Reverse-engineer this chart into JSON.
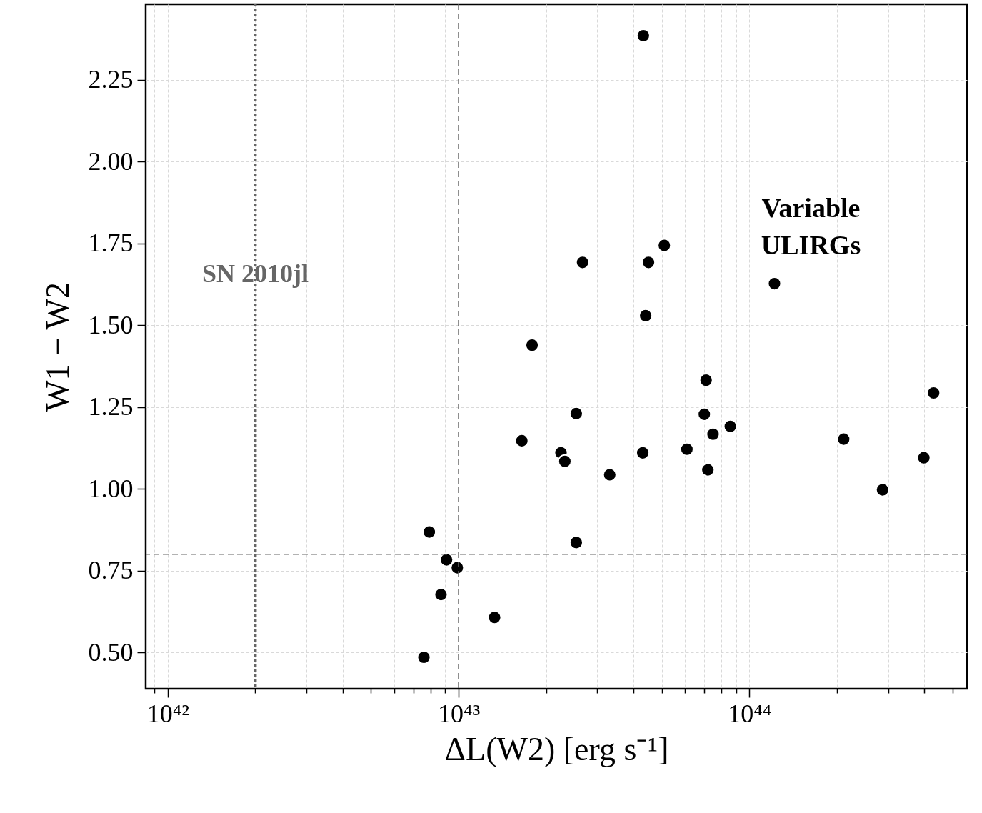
{
  "chart_data": {
    "type": "scatter",
    "xlabel": "ΔL(W2) [erg s⁻¹]",
    "ylabel": "W1 − W2",
    "log": "x",
    "grid": true,
    "marker": "circle",
    "color": "#000000",
    "x": [
      4.32e+43,
      5.1e+43,
      4.5e+43,
      2.67e+43,
      4.4e+43,
      1.22e+44,
      1.79e+43,
      7.1e+43,
      4.3e+44,
      2.54e+43,
      7e+43,
      8.6e+43,
      7.5e+43,
      2.11e+44,
      1.65e+43,
      6.1e+43,
      2.25e+43,
      4.3e+43,
      2.32e+43,
      3.98e+44,
      7.2e+43,
      3.31e+43,
      2.87e+44,
      2.54e+43,
      7.93e+42,
      9.09e+42,
      9.9e+42,
      8.7e+42,
      1.33e+43,
      7.6e+42
    ],
    "values": [
      2.385,
      1.744,
      1.692,
      1.692,
      1.529,
      1.627,
      1.439,
      1.332,
      1.293,
      1.23,
      1.228,
      1.191,
      1.167,
      1.152,
      1.147,
      1.121,
      1.11,
      1.11,
      1.084,
      1.095,
      1.058,
      1.043,
      0.997,
      0.836,
      0.868,
      0.783,
      0.759,
      0.677,
      0.607,
      0.485
    ],
    "xlim": [
      8.4e+41,
      5.6e+44
    ],
    "ylim": [
      0.389,
      2.481
    ],
    "xticks": [
      {
        "value": 9e+41,
        "label": null
      },
      {
        "value": 1e+42,
        "label": "10⁴²"
      },
      {
        "value": 2e+42,
        "label": null
      },
      {
        "value": 3e+42,
        "label": null
      },
      {
        "value": 4e+42,
        "label": null
      },
      {
        "value": 5e+42,
        "label": null
      },
      {
        "value": 6e+42,
        "label": null
      },
      {
        "value": 7e+42,
        "label": null
      },
      {
        "value": 8e+42,
        "label": null
      },
      {
        "value": 9e+42,
        "label": null
      },
      {
        "value": 1e+43,
        "label": "10⁴³"
      },
      {
        "value": 2e+43,
        "label": null
      },
      {
        "value": 3e+43,
        "label": null
      },
      {
        "value": 4e+43,
        "label": null
      },
      {
        "value": 5e+43,
        "label": null
      },
      {
        "value": 6e+43,
        "label": null
      },
      {
        "value": 7e+43,
        "label": null
      },
      {
        "value": 8e+43,
        "label": null
      },
      {
        "value": 9e+43,
        "label": null
      },
      {
        "value": 1e+44,
        "label": "10⁴⁴"
      },
      {
        "value": 2e+44,
        "label": null
      },
      {
        "value": 3e+44,
        "label": null
      },
      {
        "value": 4e+44,
        "label": null
      },
      {
        "value": 5e+44,
        "label": null
      }
    ],
    "yticks": [
      {
        "value": 0.5,
        "label": "0.50"
      },
      {
        "value": 0.75,
        "label": "0.75"
      },
      {
        "value": 1,
        "label": "1.00"
      },
      {
        "value": 1.25,
        "label": "1.25"
      },
      {
        "value": 1.5,
        "label": "1.50"
      },
      {
        "value": 1.75,
        "label": "1.75"
      },
      {
        "value": 2,
        "label": "2.00"
      },
      {
        "value": 2.25,
        "label": "2.25"
      }
    ],
    "ref_lines": [
      {
        "axis": "x",
        "value": 2e+42,
        "label": "SN 2010jl",
        "color": "#666666",
        "line_style": "dotted"
      },
      {
        "axis": "x",
        "value": 1e+43,
        "color": "#666666",
        "line_style": "dashed"
      },
      {
        "axis": "y",
        "value": 0.8,
        "color": "#666666",
        "line_style": "dashed"
      }
    ],
    "annotations": [
      "Variable\nULIRGs"
    ]
  }
}
